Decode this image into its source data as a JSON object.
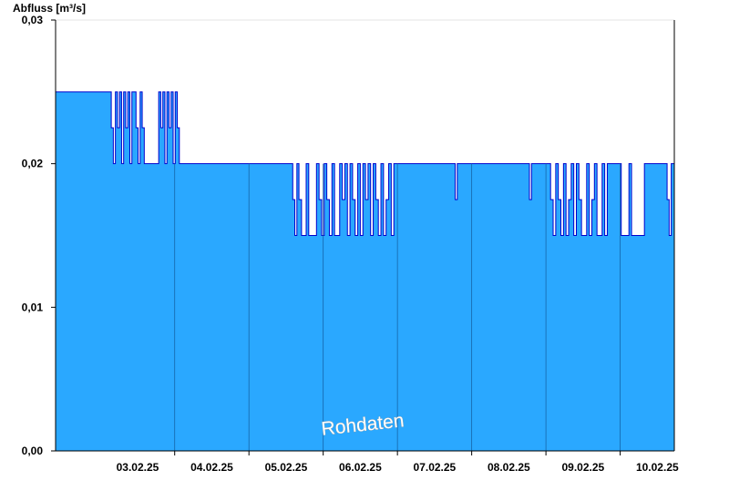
{
  "chart_data": {
    "type": "area",
    "title": "",
    "ylabel": "Abfluss [m³/s]",
    "ylim": [
      0,
      0.03
    ],
    "xlim": [
      "2025-02-02T09:30",
      "2025-02-10T17:30"
    ],
    "y_ticks": [
      {
        "value": 0.0,
        "label": "0,00"
      },
      {
        "value": 0.01,
        "label": "0,01"
      },
      {
        "value": 0.02,
        "label": "0,02"
      },
      {
        "value": 0.03,
        "label": "0,03"
      }
    ],
    "x_ticks": [
      {
        "x": "2025-02-03T12:00",
        "label": "03.02.25"
      },
      {
        "x": "2025-02-04T12:00",
        "label": "04.02.25"
      },
      {
        "x": "2025-02-05T12:00",
        "label": "05.02.25"
      },
      {
        "x": "2025-02-06T12:00",
        "label": "06.02.25"
      },
      {
        "x": "2025-02-07T12:00",
        "label": "07.02.25"
      },
      {
        "x": "2025-02-08T12:00",
        "label": "08.02.25"
      },
      {
        "x": "2025-02-09T12:00",
        "label": "09.02.25"
      },
      {
        "x": "2025-02-10T12:00",
        "label": "10.02.25"
      }
    ],
    "day_lines": [
      "2025-02-04T00:00",
      "2025-02-05T00:00",
      "2025-02-06T00:00",
      "2025-02-07T00:00",
      "2025-02-08T00:00",
      "2025-02-09T00:00",
      "2025-02-10T00:00"
    ],
    "series": [
      {
        "x": [
          "2025-02-02T09:30",
          "2025-02-03T03:30",
          "2025-02-03T04:10",
          "2025-02-03T04:50",
          "2025-02-03T05:30",
          "2025-02-03T06:10",
          "2025-02-03T06:50",
          "2025-02-03T07:30",
          "2025-02-03T08:10",
          "2025-02-03T08:50",
          "2025-02-03T09:30",
          "2025-02-03T10:10",
          "2025-02-03T10:50",
          "2025-02-03T11:30",
          "2025-02-03T12:10",
          "2025-02-03T12:50",
          "2025-02-03T13:30",
          "2025-02-03T14:10",
          "2025-02-03T18:50",
          "2025-02-03T19:30",
          "2025-02-03T20:10",
          "2025-02-03T20:50",
          "2025-02-03T21:30",
          "2025-02-03T22:10",
          "2025-02-03T22:50",
          "2025-02-03T23:30",
          "2025-02-04T00:10",
          "2025-02-04T00:50",
          "2025-02-04T01:30",
          "2025-02-05T14:10",
          "2025-02-05T14:50",
          "2025-02-05T15:30",
          "2025-02-05T16:10",
          "2025-02-05T17:00",
          "2025-02-05T17:40",
          "2025-02-05T18:30",
          "2025-02-05T19:20",
          "2025-02-05T20:10",
          "2025-02-05T21:00",
          "2025-02-05T21:50",
          "2025-02-05T22:40",
          "2025-02-05T23:30",
          "2025-02-06T00:20",
          "2025-02-06T01:10",
          "2025-02-06T02:00",
          "2025-02-06T02:50",
          "2025-02-06T03:40",
          "2025-02-06T04:30",
          "2025-02-06T05:20",
          "2025-02-06T06:10",
          "2025-02-06T07:00",
          "2025-02-06T07:50",
          "2025-02-06T08:40",
          "2025-02-06T09:30",
          "2025-02-06T10:20",
          "2025-02-06T11:10",
          "2025-02-06T12:00",
          "2025-02-06T12:50",
          "2025-02-06T13:40",
          "2025-02-06T14:30",
          "2025-02-06T15:20",
          "2025-02-06T16:10",
          "2025-02-06T17:00",
          "2025-02-06T17:50",
          "2025-02-06T18:40",
          "2025-02-06T19:30",
          "2025-02-06T20:20",
          "2025-02-06T21:10",
          "2025-02-06T22:00",
          "2025-02-06T22:50",
          "2025-02-07T18:40",
          "2025-02-07T19:20",
          "2025-02-08T18:40",
          "2025-02-08T19:20",
          "2025-02-09T01:30",
          "2025-02-09T02:20",
          "2025-02-09T03:10",
          "2025-02-09T04:00",
          "2025-02-09T04:50",
          "2025-02-09T05:40",
          "2025-02-09T06:30",
          "2025-02-09T07:20",
          "2025-02-09T08:10",
          "2025-02-09T09:00",
          "2025-02-09T09:50",
          "2025-02-09T10:40",
          "2025-02-09T11:30",
          "2025-02-09T12:20",
          "2025-02-09T13:10",
          "2025-02-09T14:00",
          "2025-02-09T14:50",
          "2025-02-09T15:40",
          "2025-02-09T16:30",
          "2025-02-09T17:20",
          "2025-02-09T18:10",
          "2025-02-09T19:00",
          "2025-02-09T19:50",
          "2025-02-10T00:20",
          "2025-02-10T01:10",
          "2025-02-10T02:00",
          "2025-02-10T02:50",
          "2025-02-10T03:40",
          "2025-02-10T04:30",
          "2025-02-10T05:20",
          "2025-02-10T06:10",
          "2025-02-10T07:00",
          "2025-02-10T07:50",
          "2025-02-10T15:10",
          "2025-02-10T15:50",
          "2025-02-10T16:30",
          "2025-02-10T17:10"
        ],
        "values": [
          0.025,
          0.0225,
          0.02,
          0.025,
          0.0225,
          0.025,
          0.02,
          0.025,
          0.0225,
          0.025,
          0.02,
          0.025,
          0.025,
          0.0225,
          0.02,
          0.025,
          0.0225,
          0.02,
          0.025,
          0.0225,
          0.025,
          0.02,
          0.025,
          0.0225,
          0.025,
          0.02,
          0.025,
          0.0225,
          0.02,
          0.0175,
          0.015,
          0.02,
          0.0175,
          0.015,
          0.015,
          0.02,
          0.015,
          0.015,
          0.015,
          0.02,
          0.0175,
          0.015,
          0.02,
          0.0175,
          0.015,
          0.02,
          0.015,
          0.015,
          0.02,
          0.0175,
          0.02,
          0.015,
          0.02,
          0.0175,
          0.015,
          0.02,
          0.015,
          0.02,
          0.0175,
          0.02,
          0.015,
          0.02,
          0.0175,
          0.015,
          0.02,
          0.015,
          0.0175,
          0.02,
          0.015,
          0.02,
          0.0175,
          0.02,
          0.0175,
          0.02,
          0.0175,
          0.015,
          0.02,
          0.0175,
          0.015,
          0.02,
          0.015,
          0.0175,
          0.02,
          0.015,
          0.02,
          0.0175,
          0.015,
          0.015,
          0.02,
          0.015,
          0.0175,
          0.02,
          0.015,
          0.015,
          0.02,
          0.015,
          0.02,
          0.015,
          0.015,
          0.015,
          0.02,
          0.015,
          0.015,
          0.015,
          0.015,
          0.015,
          0.02,
          0.0175,
          0.015,
          0.02,
          0.02
        ]
      }
    ],
    "grid": false,
    "annotation": "Rohdaten",
    "colors": {
      "fill": "#2aa8ff",
      "line": "#0000cc",
      "day_line": "#1565a8"
    }
  }
}
